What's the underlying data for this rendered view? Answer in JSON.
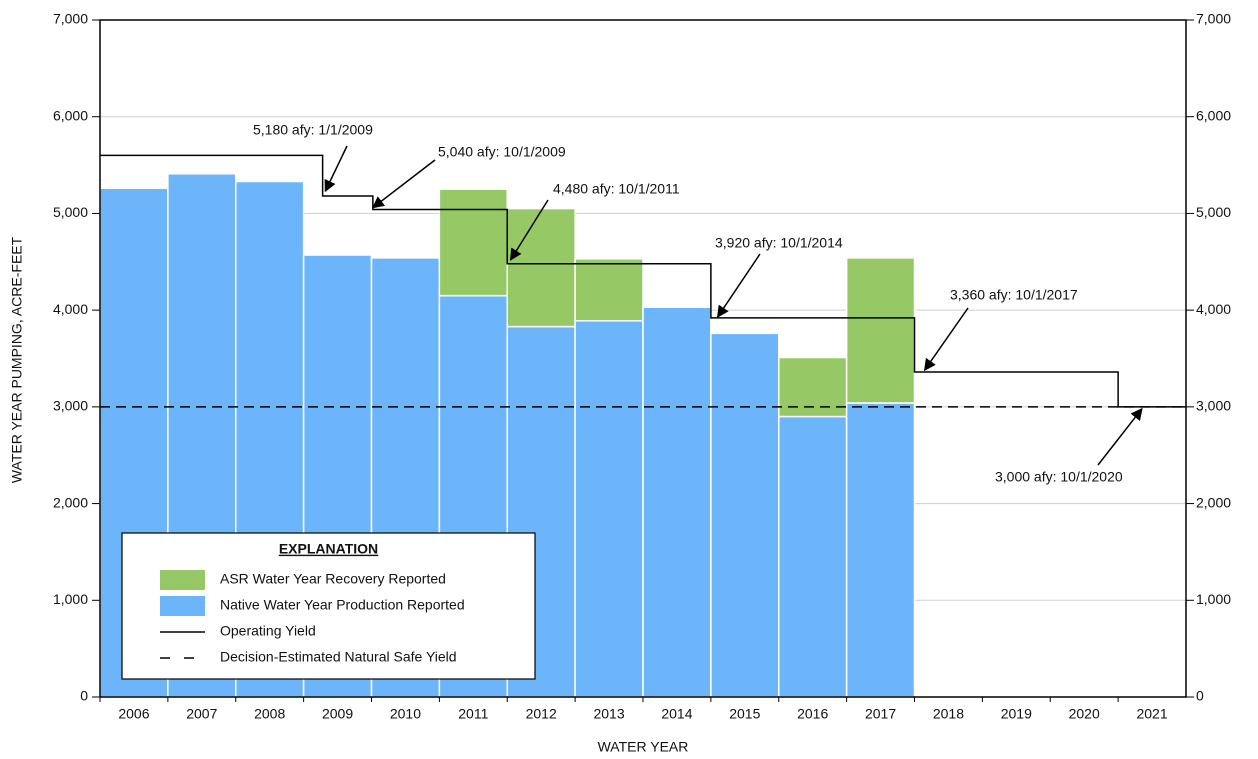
{
  "chart_data": {
    "type": "bar",
    "stacked": true,
    "ylabel": "WATER YEAR PUMPING, ACRE-FEET",
    "xlabel": "WATER YEAR",
    "categories": [
      "2006",
      "2007",
      "2008",
      "2009",
      "2010",
      "2011",
      "2012",
      "2013",
      "2014",
      "2015",
      "2016",
      "2017",
      "2018",
      "2019",
      "2020",
      "2021"
    ],
    "series": [
      {
        "name": "Native Water Year Production Reported",
        "color": "#6db5fb",
        "values": [
          5260,
          5410,
          5330,
          4570,
          4540,
          4150,
          3830,
          3890,
          4030,
          3760,
          2900,
          3040,
          null,
          null,
          null,
          null
        ]
      },
      {
        "name": "ASR Water Year Recovery Reported",
        "color": "#96c865",
        "values": [
          null,
          null,
          null,
          null,
          null,
          1100,
          1220,
          640,
          null,
          null,
          610,
          1500,
          null,
          null,
          null,
          null
        ]
      }
    ],
    "lines": [
      {
        "name": "Operating Yield",
        "color": "#000000",
        "style": "solid",
        "step": "post",
        "x": [
          2005.5,
          2008.78,
          2009.52,
          2011.5,
          2014.5,
          2017.5,
          2020.5,
          2021.5
        ],
        "values": [
          5600,
          5180,
          5040,
          4480,
          3920,
          3360,
          3000,
          3000
        ]
      },
      {
        "name": "Decision-Estimated Natural Safe Yield",
        "color": "#000000",
        "style": "dashed",
        "x": [
          2005.5,
          2021.5
        ],
        "values": [
          3000,
          3000
        ]
      }
    ],
    "legend_title": "EXPLANATION",
    "legend_order": [
      1,
      0
    ],
    "legend_position": "lower left",
    "annotations": [
      {
        "text": "5,180 afy: 1/1/2009",
        "x": 2008.82,
        "y": 5230
      },
      {
        "text": "5,040 afy: 10/1/2009",
        "x": 2009.52,
        "y": 5060
      },
      {
        "text": "4,480 afy: 10/1/2011",
        "x": 2011.55,
        "y": 4520
      },
      {
        "text": "3,920 afy: 10/1/2014",
        "x": 2014.6,
        "y": 3930
      },
      {
        "text": "3,360 afy: 10/1/2017",
        "x": 2017.65,
        "y": 3380
      },
      {
        "text": "3,000 afy: 10/1/2020",
        "x": 2020.85,
        "y": 2980
      }
    ],
    "ylim": [
      0,
      7000
    ],
    "yticks": [
      0,
      {
        "value": 1000,
        "label": "1,000"
      },
      {
        "value": 2000,
        "label": "2,000"
      },
      {
        "value": 3000,
        "label": "3,000"
      },
      {
        "value": 4000,
        "label": "4,000"
      },
      {
        "value": 5000,
        "label": "5,000"
      },
      {
        "value": 6000,
        "label": "6,000"
      },
      {
        "value": 7000,
        "label": "7,000"
      }
    ],
    "y2lim": [
      0,
      7000
    ],
    "y2ticks": [
      0,
      {
        "value": 1000,
        "label": "1,000"
      },
      {
        "value": 2000,
        "label": "2,000"
      },
      {
        "value": 3000,
        "label": "3,000"
      },
      {
        "value": 4000,
        "label": "4,000"
      },
      {
        "value": 5000,
        "label": "5,000"
      },
      {
        "value": 6000,
        "label": "6,000"
      },
      {
        "value": 7000,
        "label": "7,000"
      }
    ],
    "grid": true
  }
}
